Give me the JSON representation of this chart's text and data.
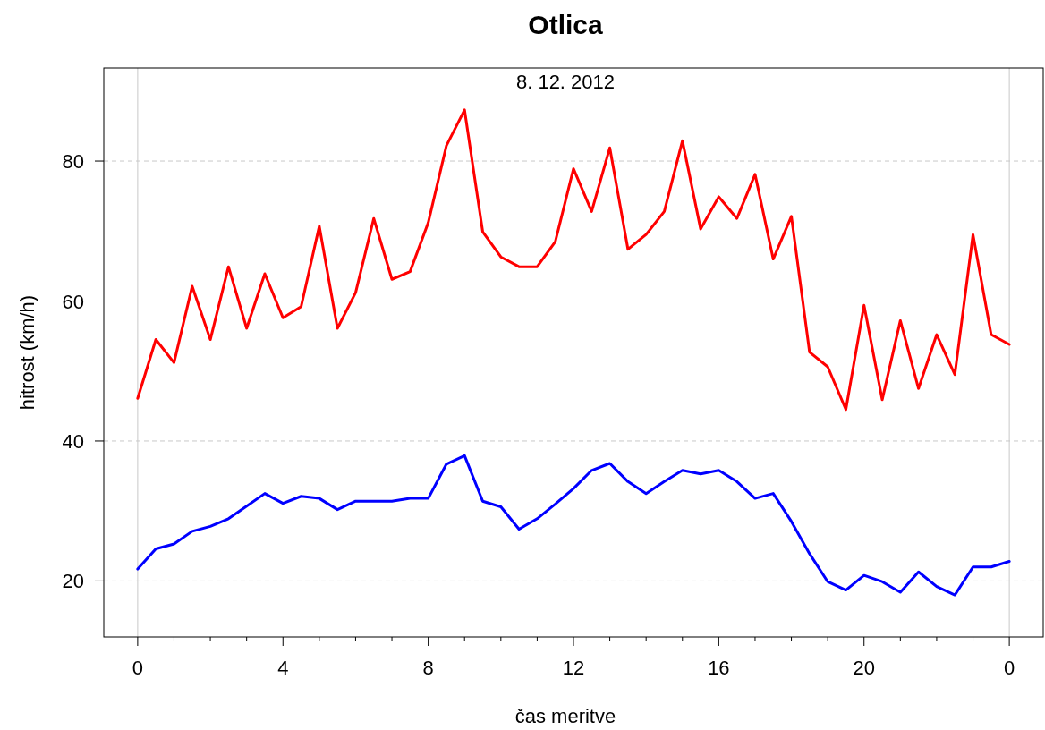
{
  "chart_data": {
    "type": "line",
    "title": "Otlica",
    "subtitle": "8. 12. 2012",
    "xlabel": "čas meritve",
    "ylabel": "hitrost (km/h)",
    "x": [
      "2012-12-08T00:00",
      "2012-12-08T00:30",
      "2012-12-08T01:00",
      "2012-12-08T01:30",
      "2012-12-08T02:00",
      "2012-12-08T02:30",
      "2012-12-08T03:00",
      "2012-12-08T03:30",
      "2012-12-08T04:00",
      "2012-12-08T04:30",
      "2012-12-08T05:00",
      "2012-12-08T05:30",
      "2012-12-08T06:00",
      "2012-12-08T06:30",
      "2012-12-08T07:00",
      "2012-12-08T07:30",
      "2012-12-08T08:00",
      "2012-12-08T08:30",
      "2012-12-08T09:00",
      "2012-12-08T09:30",
      "2012-12-08T10:00",
      "2012-12-08T10:30",
      "2012-12-08T11:00",
      "2012-12-08T11:30",
      "2012-12-08T12:00",
      "2012-12-08T12:30",
      "2012-12-08T13:00",
      "2012-12-08T13:30",
      "2012-12-08T14:00",
      "2012-12-08T14:30",
      "2012-12-08T15:00",
      "2012-12-08T15:30",
      "2012-12-08T16:00",
      "2012-12-08T16:30",
      "2012-12-08T17:00",
      "2012-12-08T17:30",
      "2012-12-08T18:00",
      "2012-12-08T18:30",
      "2012-12-08T19:00",
      "2012-12-08T19:30",
      "2012-12-08T20:00",
      "2012-12-08T20:30",
      "2012-12-08T21:00",
      "2012-12-08T21:30",
      "2012-12-08T22:00",
      "2012-12-08T22:30",
      "2012-12-08T23:00",
      "2012-12-08T23:30",
      "2012-12-09T00:00"
    ],
    "series": [
      {
        "color": "#ff0000",
        "values": [
          46.1,
          54.5,
          51.2,
          62.1,
          54.5,
          64.9,
          56.1,
          63.9,
          57.6,
          59.2,
          70.7,
          56.1,
          61.2,
          71.8,
          63.1,
          64.2,
          71.2,
          82.2,
          87.3,
          69.9,
          66.3,
          64.9,
          64.9,
          68.5,
          78.9,
          72.8,
          81.9,
          67.4,
          69.5,
          72.8,
          82.9,
          70.3,
          74.9,
          71.8,
          78.1,
          66.0,
          72.1,
          52.7,
          50.6,
          44.5,
          59.4,
          45.9,
          57.2,
          47.5,
          55.2,
          49.5,
          69.5,
          55.2,
          53.8
        ]
      },
      {
        "color": "#0000ff",
        "values": [
          21.7,
          24.6,
          25.3,
          27.1,
          27.8,
          28.9,
          30.7,
          32.5,
          31.1,
          32.1,
          31.8,
          30.2,
          31.4,
          31.4,
          31.4,
          31.8,
          31.8,
          36.7,
          37.9,
          31.4,
          30.6,
          27.4,
          28.9,
          31.0,
          33.2,
          35.8,
          36.8,
          34.2,
          32.5,
          34.2,
          35.8,
          35.3,
          35.8,
          34.2,
          31.8,
          32.5,
          28.5,
          23.9,
          19.9,
          18.7,
          20.8,
          19.9,
          18.4,
          21.3,
          19.2,
          18.0,
          22.0,
          22.0,
          22.8
        ]
      }
    ],
    "xlim": [
      "2012-12-07T23:04",
      "2012-12-09T00:56"
    ],
    "ylim": [
      12,
      93.3
    ],
    "xticks": [
      {
        "value": "2012-12-08T00:00",
        "label": "0"
      },
      {
        "value": "2012-12-08T01:00",
        "label": null
      },
      {
        "value": "2012-12-08T02:00",
        "label": null
      },
      {
        "value": "2012-12-08T03:00",
        "label": null
      },
      {
        "value": "2012-12-08T04:00",
        "label": "4"
      },
      {
        "value": "2012-12-08T05:00",
        "label": null
      },
      {
        "value": "2012-12-08T06:00",
        "label": null
      },
      {
        "value": "2012-12-08T07:00",
        "label": null
      },
      {
        "value": "2012-12-08T08:00",
        "label": "8"
      },
      {
        "value": "2012-12-08T09:00",
        "label": null
      },
      {
        "value": "2012-12-08T10:00",
        "label": null
      },
      {
        "value": "2012-12-08T11:00",
        "label": null
      },
      {
        "value": "2012-12-08T12:00",
        "label": "12"
      },
      {
        "value": "2012-12-08T13:00",
        "label": null
      },
      {
        "value": "2012-12-08T14:00",
        "label": null
      },
      {
        "value": "2012-12-08T15:00",
        "label": null
      },
      {
        "value": "2012-12-08T16:00",
        "label": "16"
      },
      {
        "value": "2012-12-08T17:00",
        "label": null
      },
      {
        "value": "2012-12-08T18:00",
        "label": null
      },
      {
        "value": "2012-12-08T19:00",
        "label": null
      },
      {
        "value": "2012-12-08T20:00",
        "label": "20"
      },
      {
        "value": "2012-12-08T21:00",
        "label": null
      },
      {
        "value": "2012-12-08T22:00",
        "label": null
      },
      {
        "value": "2012-12-08T23:00",
        "label": null
      },
      {
        "value": "2012-12-09T00:00",
        "label": "0"
      }
    ],
    "yticks": [
      20,
      40,
      60,
      80
    ],
    "grid": "y",
    "ref_lines": [
      {
        "axis": "x",
        "value": "2012-12-08T00:00",
        "color": "#c8c8c8",
        "line_style": "solid"
      },
      {
        "axis": "x",
        "value": "2012-12-09T00:00",
        "color": "#c8c8c8",
        "line_style": "solid"
      }
    ],
    "line_style": "solid",
    "marker": "none"
  }
}
